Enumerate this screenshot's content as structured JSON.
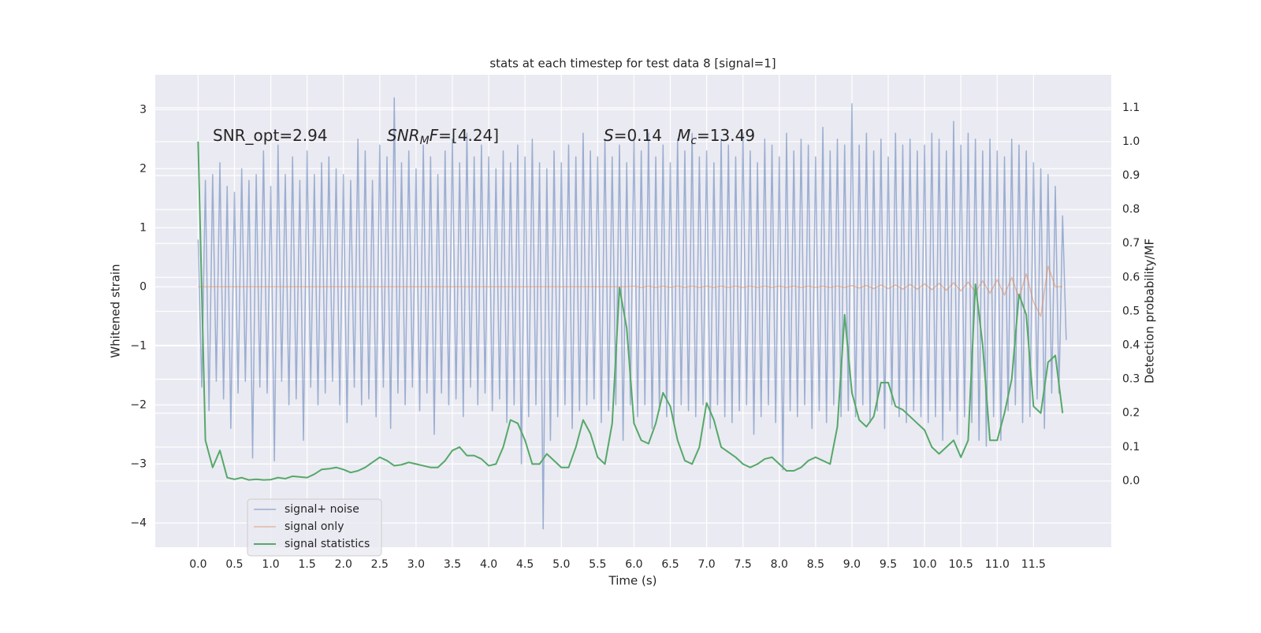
{
  "chart_data": {
    "type": "line",
    "title": "stats at each timestep for test data 8 [signal=1]",
    "xlabel": "Time (s)",
    "ylabel": "Whitened strain",
    "y2label": "Detection probability/MF",
    "annotations": [
      [
        {
          "text": "SNR_opt=2.94",
          "style": "normal"
        }
      ],
      [
        {
          "text": "SNR",
          "style": "italic"
        },
        {
          "text": "M",
          "style": "italic-sub"
        },
        {
          "text": "F",
          "style": "italic"
        },
        {
          "text": "=[4.24]",
          "style": "normal"
        }
      ],
      [
        {
          "text": "S",
          "style": "italic"
        },
        {
          "text": "=0.14   ",
          "style": "normal"
        },
        {
          "text": "M",
          "style": "italic"
        },
        {
          "text": "c",
          "style": "italic-sub"
        },
        {
          "text": "=13.49",
          "style": "normal"
        }
      ]
    ],
    "xlim": [
      -0.59,
      12.57
    ],
    "ylim": [
      -4.41,
      3.59
    ],
    "y2lim": [
      -0.195,
      1.197
    ],
    "xticks": [
      {
        "value": 0,
        "label": "0.0"
      },
      0.5,
      {
        "value": 1,
        "label": "1.0"
      },
      1.5,
      {
        "value": 2,
        "label": "2.0"
      },
      2.5,
      {
        "value": 3,
        "label": "3.0"
      },
      3.5,
      {
        "value": 4,
        "label": "4.0"
      },
      4.5,
      {
        "value": 5,
        "label": "5.0"
      },
      5.5,
      {
        "value": 6,
        "label": "6.0"
      },
      6.5,
      {
        "value": 7,
        "label": "7.0"
      },
      7.5,
      {
        "value": 8,
        "label": "8.0"
      },
      8.5,
      {
        "value": 9,
        "label": "9.0"
      },
      9.5,
      {
        "value": 10,
        "label": "10.0"
      },
      10.5,
      {
        "value": 11,
        "label": "11.0"
      },
      11.5
    ],
    "yticks": [
      {
        "value": -4,
        "label": "−4"
      },
      {
        "value": -3,
        "label": "−3"
      },
      {
        "value": -2,
        "label": "−2"
      },
      {
        "value": -1,
        "label": "−1"
      },
      0,
      1,
      2,
      3
    ],
    "y2ticks": [
      {
        "value": 0,
        "label": "0.0"
      },
      {
        "value": 0.1,
        "label": "0.1"
      },
      {
        "value": 0.2,
        "label": "0.2"
      },
      {
        "value": 0.3,
        "label": "0.3"
      },
      {
        "value": 0.4,
        "label": "0.4"
      },
      {
        "value": 0.5,
        "label": "0.5"
      },
      {
        "value": 0.6,
        "label": "0.6"
      },
      {
        "value": 0.7,
        "label": "0.7"
      },
      {
        "value": 0.8,
        "label": "0.8"
      },
      {
        "value": 0.9,
        "label": "0.9"
      },
      {
        "value": 1,
        "label": "1.0"
      },
      {
        "value": 1.1,
        "label": "1.1"
      }
    ],
    "grid": true,
    "legend": "lower left",
    "x": [
      0,
      0.1,
      0.2,
      0.3,
      0.4,
      0.5,
      0.6,
      0.7,
      0.8,
      0.9,
      1,
      1.1,
      1.2,
      1.3,
      1.4,
      1.5,
      1.6,
      1.7,
      1.8,
      1.9,
      2,
      2.1,
      2.2,
      2.3,
      2.4,
      2.5,
      2.6,
      2.7,
      2.8,
      2.9,
      3,
      3.1,
      3.2,
      3.3,
      3.4,
      3.5,
      3.6,
      3.7,
      3.8,
      3.9,
      4,
      4.1,
      4.2,
      4.3,
      4.4,
      4.5,
      4.6,
      4.7,
      4.8,
      4.9,
      5,
      5.1,
      5.2,
      5.3,
      5.4,
      5.5,
      5.6,
      5.7,
      5.8,
      5.9,
      6,
      6.1,
      6.2,
      6.3,
      6.4,
      6.5,
      6.6,
      6.7,
      6.8,
      6.9,
      7,
      7.1,
      7.2,
      7.3,
      7.4,
      7.5,
      7.6,
      7.7,
      7.8,
      7.9,
      8,
      8.1,
      8.2,
      8.3,
      8.4,
      8.5,
      8.6,
      8.7,
      8.8,
      8.9,
      9,
      9.1,
      9.2,
      9.3,
      9.4,
      9.5,
      9.6,
      9.7,
      9.8,
      9.9,
      10,
      10.1,
      10.2,
      10.3,
      10.4,
      10.5,
      10.6,
      10.7,
      10.8,
      10.9,
      11,
      11.1,
      11.2,
      11.3,
      11.4,
      11.5,
      11.6,
      11.7,
      11.8,
      11.9
    ],
    "series": [
      {
        "name": "signal+ noise",
        "color": "#4c72b0",
        "alpha": 0.5,
        "width": 1.5,
        "x": [
          0,
          0.05,
          0.1,
          0.15,
          0.2,
          0.25,
          0.3,
          0.35,
          0.4,
          0.45,
          0.5,
          0.55,
          0.6,
          0.65,
          0.7,
          0.75,
          0.8,
          0.85,
          0.9,
          0.95,
          1,
          1.05,
          1.1,
          1.15,
          1.2,
          1.25,
          1.3,
          1.35,
          1.4,
          1.45,
          1.5,
          1.55,
          1.6,
          1.65,
          1.7,
          1.75,
          1.8,
          1.85,
          1.9,
          1.95,
          2,
          2.05,
          2.1,
          2.15,
          2.2,
          2.25,
          2.3,
          2.35,
          2.4,
          2.45,
          2.5,
          2.55,
          2.6,
          2.65,
          2.7,
          2.75,
          2.8,
          2.85,
          2.9,
          2.95,
          3,
          3.05,
          3.1,
          3.15,
          3.2,
          3.25,
          3.3,
          3.35,
          3.4,
          3.45,
          3.5,
          3.55,
          3.6,
          3.65,
          3.7,
          3.75,
          3.8,
          3.85,
          3.9,
          3.95,
          4,
          4.05,
          4.1,
          4.15,
          4.2,
          4.25,
          4.3,
          4.35,
          4.4,
          4.45,
          4.5,
          4.55,
          4.6,
          4.65,
          4.7,
          4.75,
          4.8,
          4.85,
          4.9,
          4.95,
          5,
          5.05,
          5.1,
          5.15,
          5.2,
          5.25,
          5.3,
          5.35,
          5.4,
          5.45,
          5.5,
          5.55,
          5.6,
          5.65,
          5.7,
          5.75,
          5.8,
          5.85,
          5.9,
          5.95,
          6,
          6.05,
          6.1,
          6.15,
          6.2,
          6.25,
          6.3,
          6.35,
          6.4,
          6.45,
          6.5,
          6.55,
          6.6,
          6.65,
          6.7,
          6.75,
          6.8,
          6.85,
          6.9,
          6.95,
          7,
          7.05,
          7.1,
          7.15,
          7.2,
          7.25,
          7.3,
          7.35,
          7.4,
          7.45,
          7.5,
          7.55,
          7.6,
          7.65,
          7.7,
          7.75,
          7.8,
          7.85,
          7.9,
          7.95,
          8,
          8.05,
          8.1,
          8.15,
          8.2,
          8.25,
          8.3,
          8.35,
          8.4,
          8.45,
          8.5,
          8.55,
          8.6,
          8.65,
          8.7,
          8.75,
          8.8,
          8.85,
          8.9,
          8.95,
          9,
          9.05,
          9.1,
          9.15,
          9.2,
          9.25,
          9.3,
          9.35,
          9.4,
          9.45,
          9.5,
          9.55,
          9.6,
          9.65,
          9.7,
          9.75,
          9.8,
          9.85,
          9.9,
          9.95,
          10,
          10.05,
          10.1,
          10.15,
          10.2,
          10.25,
          10.3,
          10.35,
          10.4,
          10.45,
          10.5,
          10.55,
          10.6,
          10.65,
          10.7,
          10.75,
          10.8,
          10.85,
          10.9,
          10.95,
          11,
          11.05,
          11.1,
          11.15,
          11.2,
          11.25,
          11.3,
          11.35,
          11.4,
          11.45,
          11.5,
          11.55,
          11.6,
          11.65,
          11.7,
          11.75,
          11.8,
          11.85,
          11.9,
          11.95
        ],
        "values": [
          0.8,
          -1.7,
          1.8,
          -2.1,
          1.9,
          -1.6,
          2.1,
          -1.9,
          1.7,
          -2.4,
          1.6,
          -1.8,
          2.0,
          -1.6,
          1.8,
          -2.9,
          1.9,
          -1.7,
          2.3,
          -1.8,
          1.7,
          -2.95,
          2.4,
          -1.6,
          1.9,
          -2.0,
          2.2,
          -1.9,
          1.8,
          -2.6,
          2.3,
          -1.7,
          1.9,
          -2.0,
          2.1,
          -1.8,
          2.2,
          -1.6,
          2.0,
          -2.0,
          1.9,
          -2.3,
          1.8,
          -1.7,
          2.5,
          -2.0,
          2.3,
          -1.9,
          1.8,
          -2.2,
          2.4,
          -1.7,
          2.2,
          -2.4,
          3.2,
          -1.8,
          2.1,
          -2.0,
          2.3,
          -1.7,
          2.0,
          -2.1,
          2.4,
          -1.8,
          2.2,
          -2.5,
          1.9,
          -1.8,
          2.3,
          -2.0,
          2.5,
          -1.9,
          2.1,
          -2.2,
          2.6,
          -1.7,
          2.2,
          -2.0,
          2.4,
          -1.8,
          2.2,
          -2.1,
          2.0,
          -1.9,
          2.3,
          -2.3,
          2.1,
          -2.0,
          2.4,
          -3.0,
          2.2,
          -2.2,
          2.5,
          -2.0,
          2.1,
          -4.1,
          2.0,
          -2.6,
          2.3,
          -2.2,
          2.1,
          -2.0,
          2.4,
          -2.4,
          2.2,
          -2.1,
          2.6,
          -2.0,
          2.3,
          -1.9,
          2.2,
          -2.3,
          2.5,
          -2.1,
          2.2,
          -2.0,
          2.4,
          -2.6,
          2.1,
          -2.0,
          2.5,
          -2.2,
          2.3,
          -2.0,
          2.6,
          -2.4,
          2.2,
          -2.1,
          2.4,
          -2.2,
          2.1,
          -2.3,
          2.5,
          -2.0,
          2.3,
          -2.1,
          2.6,
          -2.2,
          2.2,
          -2.0,
          2.3,
          -2.4,
          2.1,
          -2.0,
          2.5,
          -2.2,
          2.4,
          -2.3,
          2.2,
          -2.1,
          2.6,
          -2.0,
          2.3,
          -2.5,
          2.1,
          -2.2,
          2.5,
          -2.0,
          2.4,
          -2.3,
          2.2,
          -3.1,
          2.6,
          -2.1,
          2.3,
          -2.2,
          2.5,
          -2.0,
          2.4,
          -2.4,
          2.2,
          -2.1,
          2.7,
          -2.3,
          2.3,
          -2.0,
          2.5,
          -2.2,
          2.4,
          -2.1,
          3.1,
          -2.2,
          2.4,
          -2.0,
          2.6,
          -2.3,
          2.3,
          -2.1,
          2.5,
          -2.4,
          2.2,
          -2.0,
          2.6,
          -2.2,
          2.4,
          -2.3,
          2.5,
          -2.1,
          2.3,
          -2.2,
          2.4,
          -2.3,
          2.6,
          -2.2,
          2.5,
          -2.6,
          2.3,
          -2.1,
          2.8,
          -2.5,
          2.4,
          -2.2,
          2.6,
          -2.3,
          2.5,
          -2.6,
          2.3,
          -2.7,
          2.5,
          -2.2,
          2.3,
          -2.6,
          2.2,
          -2.1,
          2.5,
          -2.0,
          2.4,
          -2.3,
          2.3,
          -2.2,
          2.1,
          -1.9,
          2.0,
          -2.4,
          1.9,
          -1.8,
          1.7,
          -1.8,
          1.2,
          -0.9
        ]
      },
      {
        "name": "signal only",
        "color": "#dd8452",
        "alpha": 0.5,
        "width": 1.5,
        "values": [
          0,
          0,
          0,
          0,
          0,
          0,
          0,
          0,
          0,
          0,
          0,
          0,
          0,
          0,
          0,
          0,
          0,
          0,
          0,
          0,
          0,
          0,
          0,
          0,
          0,
          0,
          0,
          0,
          0,
          0,
          0,
          0,
          0,
          0,
          0,
          0,
          0,
          0,
          0,
          0,
          0,
          0,
          0,
          0,
          0,
          0,
          0,
          0,
          0,
          0,
          0,
          0,
          0,
          0,
          0,
          0,
          0,
          0,
          0,
          0,
          0.01,
          -0.01,
          0.01,
          -0.01,
          0.01,
          -0.01,
          0.01,
          -0.01,
          0.01,
          -0.01,
          0.01,
          -0.01,
          0.01,
          -0.01,
          0.01,
          -0.01,
          0.01,
          -0.01,
          0.01,
          -0.01,
          0.01,
          -0.01,
          0.01,
          -0.01,
          0.01,
          -0.01,
          0.01,
          -0.01,
          0.01,
          -0.01,
          0.02,
          -0.02,
          0.02,
          -0.03,
          0.03,
          -0.03,
          0.03,
          -0.04,
          0.04,
          -0.04,
          0.05,
          -0.05,
          0.06,
          -0.06,
          0.07,
          -0.07,
          0.08,
          -0.09,
          0.1,
          -0.11,
          0.12,
          -0.14,
          0.16,
          -0.19,
          0.22,
          -0.26,
          -0.5,
          0.35,
          0,
          0
        ]
      },
      {
        "name": "signal statistics",
        "color": "#55a868",
        "alpha": 1,
        "width": 2,
        "axis": "y2",
        "values": [
          1.0,
          0.12,
          0.04,
          0.09,
          0.01,
          0.005,
          0.01,
          0.003,
          0.005,
          0.003,
          0.004,
          0.01,
          0.007,
          0.014,
          0.012,
          0.01,
          0.02,
          0.034,
          0.036,
          0.04,
          0.034,
          0.025,
          0.03,
          0.04,
          0.055,
          0.07,
          0.06,
          0.045,
          0.048,
          0.055,
          0.05,
          0.045,
          0.04,
          0.04,
          0.06,
          0.09,
          0.1,
          0.075,
          0.075,
          0.065,
          0.045,
          0.05,
          0.1,
          0.18,
          0.17,
          0.12,
          0.05,
          0.05,
          0.08,
          0.06,
          0.04,
          0.04,
          0.1,
          0.18,
          0.14,
          0.07,
          0.05,
          0.17,
          0.57,
          0.45,
          0.17,
          0.12,
          0.11,
          0.17,
          0.26,
          0.22,
          0.12,
          0.06,
          0.05,
          0.1,
          0.23,
          0.18,
          0.1,
          0.085,
          0.07,
          0.05,
          0.04,
          0.05,
          0.065,
          0.07,
          0.05,
          0.03,
          0.03,
          0.04,
          0.06,
          0.07,
          0.06,
          0.05,
          0.16,
          0.49,
          0.26,
          0.18,
          0.16,
          0.19,
          0.29,
          0.29,
          0.22,
          0.21,
          0.19,
          0.17,
          0.15,
          0.1,
          0.08,
          0.1,
          0.12,
          0.07,
          0.12,
          0.58,
          0.4,
          0.12,
          0.12,
          0.2,
          0.3,
          0.55,
          0.49,
          0.22,
          0.2,
          0.35,
          0.37,
          0.2
        ]
      }
    ]
  }
}
